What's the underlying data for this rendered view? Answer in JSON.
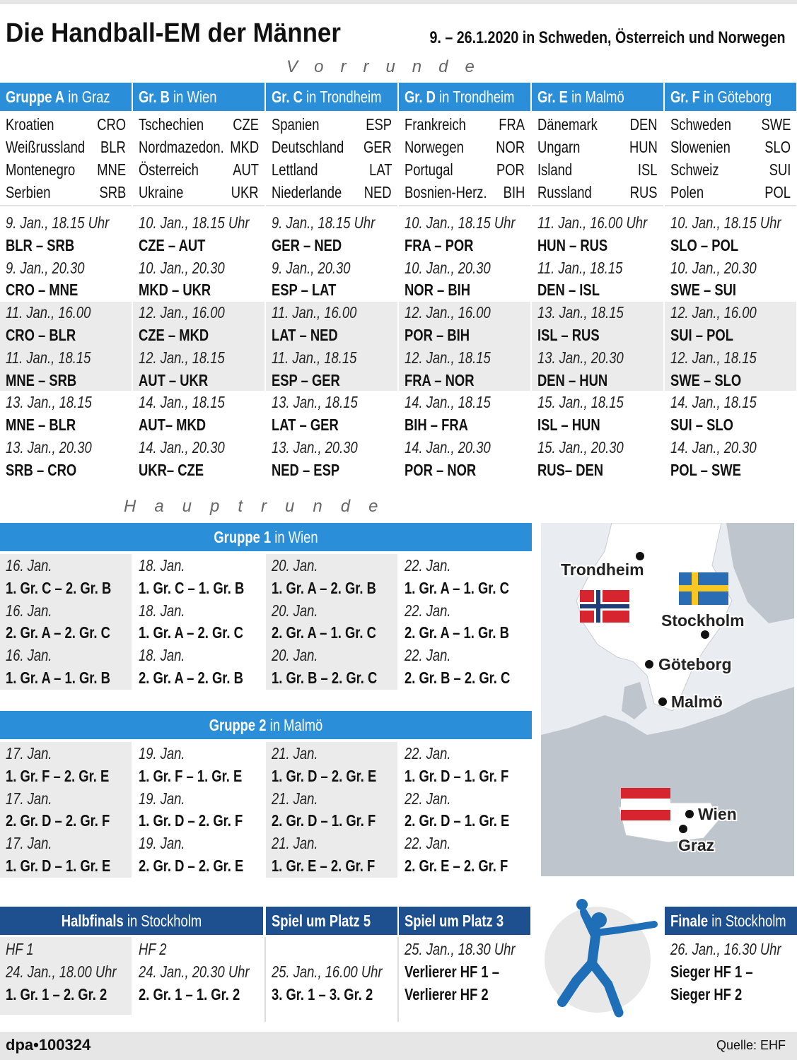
{
  "header": {
    "title": "Die Handball-EM der Männer",
    "subtitle": "9. – 26.1.2020 in Schweden, Österreich und Norwegen"
  },
  "vorrunde": {
    "label": "Vorrunde",
    "groups": [
      {
        "name": "Gruppe A",
        "venue": "in Graz",
        "teams": [
          [
            "Kroatien",
            "CRO"
          ],
          [
            "Weißrussland",
            "BLR"
          ],
          [
            "Montenegro",
            "MNE"
          ],
          [
            "Serbien",
            "SRB"
          ]
        ],
        "matches": [
          [
            "9. Jan., 18.15 Uhr",
            "BLR – SRB"
          ],
          [
            "9. Jan., 20.30",
            "CRO – MNE"
          ],
          [
            "11. Jan., 16.00",
            "CRO – BLR"
          ],
          [
            "11. Jan., 18.15",
            "MNE – SRB"
          ],
          [
            "13. Jan., 18.15",
            "MNE – BLR"
          ],
          [
            "13. Jan., 20.30",
            "SRB – CRO"
          ]
        ]
      },
      {
        "name": "Gr. B",
        "venue": "in Wien",
        "teams": [
          [
            "Tschechien",
            "CZE"
          ],
          [
            "Nordmazedon.",
            "MKD"
          ],
          [
            "Österreich",
            "AUT"
          ],
          [
            "Ukraine",
            "UKR"
          ]
        ],
        "matches": [
          [
            "10. Jan., 18.15 Uhr",
            "CZE – AUT"
          ],
          [
            "10. Jan., 20.30",
            "MKD – UKR"
          ],
          [
            "12. Jan., 16.00",
            "CZE – MKD"
          ],
          [
            "12. Jan., 18.15",
            "AUT – UKR"
          ],
          [
            "14. Jan., 18.15",
            "AUT– MKD"
          ],
          [
            "14. Jan., 20.30",
            "UKR– CZE"
          ]
        ]
      },
      {
        "name": "Gr. C",
        "venue": "in Trondheim",
        "teams": [
          [
            "Spanien",
            "ESP"
          ],
          [
            "Deutschland",
            "GER"
          ],
          [
            "Lettland",
            "LAT"
          ],
          [
            "Niederlande",
            "NED"
          ]
        ],
        "matches": [
          [
            "9. Jan., 18.15 Uhr",
            "GER – NED"
          ],
          [
            "9. Jan., 20.30",
            "ESP – LAT"
          ],
          [
            "11. Jan., 16.00",
            "LAT – NED"
          ],
          [
            "11. Jan., 18.15",
            "ESP – GER"
          ],
          [
            "13. Jan., 18.15",
            "LAT – GER"
          ],
          [
            "13. Jan., 20.30",
            "NED – ESP"
          ]
        ]
      },
      {
        "name": "Gr. D",
        "venue": "in Trondheim",
        "teams": [
          [
            "Frankreich",
            "FRA"
          ],
          [
            "Norwegen",
            "NOR"
          ],
          [
            "Portugal",
            "POR"
          ],
          [
            "Bosnien-Herz.",
            "BIH"
          ]
        ],
        "matches": [
          [
            "10. Jan., 18.15 Uhr",
            "FRA – POR"
          ],
          [
            "10. Jan., 20.30",
            "NOR – BIH"
          ],
          [
            "12. Jan., 16.00",
            "POR – BIH"
          ],
          [
            "12. Jan., 18.15",
            "FRA – NOR"
          ],
          [
            "14. Jan., 18.15",
            "BIH – FRA"
          ],
          [
            "14. Jan., 20.30",
            "POR – NOR"
          ]
        ]
      },
      {
        "name": "Gr. E",
        "venue": "in Malmö",
        "teams": [
          [
            "Dänemark",
            "DEN"
          ],
          [
            "Ungarn",
            "HUN"
          ],
          [
            "Island",
            "ISL"
          ],
          [
            "Russland",
            "RUS"
          ]
        ],
        "matches": [
          [
            "11. Jan., 16.00 Uhr",
            "HUN – RUS"
          ],
          [
            "11. Jan., 18.15",
            "DEN – ISL"
          ],
          [
            "13. Jan., 18.15",
            "ISL – RUS"
          ],
          [
            "13. Jan., 20.30",
            "DEN – HUN"
          ],
          [
            "15. Jan., 18.15",
            "ISL – HUN"
          ],
          [
            "15. Jan., 20.30",
            "RUS– DEN"
          ]
        ]
      },
      {
        "name": "Gr. F",
        "venue": "in Göteborg",
        "teams": [
          [
            "Schweden",
            "SWE"
          ],
          [
            "Slowenien",
            "SLO"
          ],
          [
            "Schweiz",
            "SUI"
          ],
          [
            "Polen",
            "POL"
          ]
        ],
        "matches": [
          [
            "10. Jan., 18.15 Uhr",
            "SLO – POL"
          ],
          [
            "10. Jan., 20.30",
            "SWE – SUI"
          ],
          [
            "12. Jan., 16.00",
            "SUI – POL"
          ],
          [
            "12. Jan., 18.15",
            "SWE – SLO"
          ],
          [
            "14. Jan., 18.15",
            "SUI – SLO"
          ],
          [
            "14. Jan., 20.30",
            "POL – SWE"
          ]
        ]
      }
    ]
  },
  "hauptrunde": {
    "label": "Hauptrunde",
    "groups": [
      {
        "name": "Gruppe 1",
        "venue": "in Wien",
        "columns": [
          [
            [
              "16. Jan.",
              "1. Gr. C – 2. Gr. B"
            ],
            [
              "16. Jan.",
              "2. Gr. A – 2. Gr. C"
            ],
            [
              "16. Jan.",
              "1. Gr. A – 1. Gr. B"
            ]
          ],
          [
            [
              "18. Jan.",
              "1. Gr. C – 1. Gr. B"
            ],
            [
              "18. Jan.",
              "1. Gr. A – 2. Gr. C"
            ],
            [
              "18. Jan.",
              "2. Gr. A – 2. Gr. B"
            ]
          ],
          [
            [
              "20. Jan.",
              "1. Gr. A – 2. Gr. B"
            ],
            [
              "20. Jan.",
              "2. Gr. A – 1. Gr. C"
            ],
            [
              "20. Jan.",
              "1. Gr. B – 2. Gr. C"
            ]
          ],
          [
            [
              "22. Jan.",
              "1. Gr. A – 1. Gr. C"
            ],
            [
              "22. Jan.",
              "2. Gr. A – 1. Gr. B"
            ],
            [
              "22. Jan.",
              "2. Gr. B – 2. Gr. C"
            ]
          ]
        ]
      },
      {
        "name": "Gruppe 2",
        "venue": "in Malmö",
        "columns": [
          [
            [
              "17. Jan.",
              "1. Gr. F – 2. Gr. E"
            ],
            [
              "17. Jan.",
              "2. Gr. D – 2. Gr. F"
            ],
            [
              "17. Jan.",
              "1. Gr. D – 1. Gr. E"
            ]
          ],
          [
            [
              "19. Jan.",
              "1. Gr. F – 1. Gr. E"
            ],
            [
              "19. Jan.",
              "1. Gr. D – 2. Gr. F"
            ],
            [
              "19. Jan.",
              "2. Gr. D – 2. Gr. E"
            ]
          ],
          [
            [
              "21. Jan.",
              "1. Gr. D – 2. Gr. E"
            ],
            [
              "21. Jan.",
              "2. Gr. D – 1. Gr. F"
            ],
            [
              "21. Jan.",
              "1. Gr. E – 2. Gr. F"
            ]
          ],
          [
            [
              "22. Jan.",
              "1. Gr. D – 1. Gr. F"
            ],
            [
              "22. Jan.",
              "2. Gr. D – 1. Gr. E"
            ],
            [
              "22. Jan.",
              "2. Gr. E – 2. Gr. F"
            ]
          ]
        ]
      }
    ]
  },
  "finals": [
    {
      "name": "Halbfinals",
      "venue": "in Stockholm",
      "games": [
        {
          "label": "HF 1",
          "date": "24. Jan., 18.00 Uhr",
          "lines": [
            "1. Gr. 1 – 2. Gr. 2"
          ]
        },
        {
          "label": "HF 2",
          "date": "24. Jan., 20.30 Uhr",
          "lines": [
            "2. Gr. 1 – 1. Gr. 2"
          ]
        }
      ]
    },
    {
      "name": "Spiel um Platz 5",
      "games": [
        {
          "date": "25. Jan., 16.00 Uhr",
          "lines": [
            "3. Gr. 1 – 3. Gr. 2"
          ]
        }
      ]
    },
    {
      "name": "Spiel um Platz 3",
      "games": [
        {
          "date": "25. Jan., 18.30 Uhr",
          "lines": [
            "Verlierer HF 1 –",
            "Verlierer HF 2"
          ]
        }
      ]
    },
    {
      "name": "Finale",
      "venue": "in Stockholm",
      "games": [
        {
          "date": "26. Jan., 16.30 Uhr",
          "lines": [
            "Sieger HF 1 –",
            "Sieger HF 2"
          ]
        }
      ]
    }
  ],
  "map": {
    "cities": [
      "Trondheim",
      "Stockholm",
      "Göteborg",
      "Malmö",
      "Wien",
      "Graz"
    ]
  },
  "footer": {
    "credit": "dpa•100324",
    "source": "Quelle: EHF"
  }
}
